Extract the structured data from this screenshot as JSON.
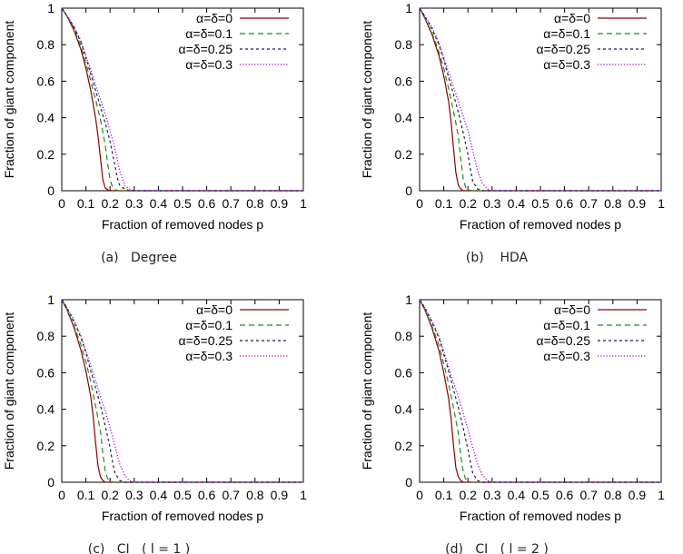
{
  "chart_data": [
    {
      "type": "line",
      "caption": "(a)   Degree",
      "xlabel": "Fraction of removed nodes p",
      "ylabel": "Fraction of giant component",
      "xlim": [
        0,
        1
      ],
      "ylim": [
        0,
        1
      ],
      "xticks": [
        "0",
        "0.1",
        "0.2",
        "0.3",
        "0.4",
        "0.5",
        "0.6",
        "0.7",
        "0.8",
        "0.9",
        "1"
      ],
      "yticks": [
        "0",
        "0.2",
        "0.4",
        "0.6",
        "0.8",
        "1"
      ],
      "legend_position": "top-right",
      "series": [
        {
          "name": "α=δ=0",
          "color": "#8b0000",
          "style": "solid",
          "x": [
            0,
            0.02,
            0.05,
            0.08,
            0.1,
            0.12,
            0.14,
            0.15,
            0.16,
            0.17,
            0.18,
            0.19,
            0.2,
            0.22,
            1
          ],
          "y": [
            1,
            0.96,
            0.88,
            0.77,
            0.67,
            0.55,
            0.4,
            0.3,
            0.18,
            0.06,
            0.015,
            0.005,
            0,
            0,
            0
          ]
        },
        {
          "name": "α=δ=0.1",
          "color": "#228b22",
          "style": "dashed",
          "x": [
            0,
            0.02,
            0.05,
            0.08,
            0.1,
            0.12,
            0.14,
            0.16,
            0.18,
            0.19,
            0.2,
            0.21,
            0.22,
            0.24,
            1
          ],
          "y": [
            1,
            0.96,
            0.89,
            0.79,
            0.7,
            0.6,
            0.5,
            0.39,
            0.25,
            0.15,
            0.06,
            0.02,
            0.005,
            0,
            0
          ]
        },
        {
          "name": "α=δ=0.25",
          "color": "#1a1a5e",
          "style": "short-dashed",
          "x": [
            0,
            0.02,
            0.05,
            0.08,
            0.1,
            0.12,
            0.14,
            0.16,
            0.18,
            0.2,
            0.22,
            0.23,
            0.24,
            0.26,
            0.28,
            1
          ],
          "y": [
            1,
            0.96,
            0.9,
            0.81,
            0.73,
            0.64,
            0.55,
            0.46,
            0.37,
            0.27,
            0.14,
            0.07,
            0.03,
            0.01,
            0,
            0
          ]
        },
        {
          "name": "α=δ=0.3",
          "color": "#9400d3",
          "style": "dotted",
          "x": [
            0,
            0.02,
            0.05,
            0.08,
            0.1,
            0.12,
            0.14,
            0.16,
            0.18,
            0.2,
            0.22,
            0.24,
            0.26,
            0.28,
            0.3,
            1
          ],
          "y": [
            1,
            0.96,
            0.9,
            0.82,
            0.74,
            0.66,
            0.58,
            0.5,
            0.42,
            0.33,
            0.23,
            0.11,
            0.03,
            0.01,
            0,
            0
          ]
        }
      ]
    },
    {
      "type": "line",
      "caption": "(b)    HDA",
      "xlabel": "Fraction of removed nodes p",
      "ylabel": "Fraction of giant component",
      "xlim": [
        0,
        1
      ],
      "ylim": [
        0,
        1
      ],
      "xticks": [
        "0",
        "0.1",
        "0.2",
        "0.3",
        "0.4",
        "0.5",
        "0.6",
        "0.7",
        "0.8",
        "0.9",
        "1"
      ],
      "yticks": [
        "0",
        "0.2",
        "0.4",
        "0.6",
        "0.8",
        "1"
      ],
      "legend_position": "top-right",
      "series": [
        {
          "name": "α=δ=0",
          "color": "#8b0000",
          "style": "solid",
          "x": [
            0,
            0.02,
            0.05,
            0.08,
            0.1,
            0.12,
            0.13,
            0.14,
            0.15,
            0.16,
            0.17,
            0.18,
            0.2,
            1
          ],
          "y": [
            1,
            0.95,
            0.86,
            0.74,
            0.63,
            0.49,
            0.38,
            0.24,
            0.1,
            0.03,
            0.01,
            0,
            0,
            0
          ]
        },
        {
          "name": "α=δ=0.1",
          "color": "#228b22",
          "style": "dashed",
          "x": [
            0,
            0.02,
            0.05,
            0.08,
            0.1,
            0.12,
            0.14,
            0.16,
            0.17,
            0.18,
            0.19,
            0.2,
            0.22,
            1
          ],
          "y": [
            1,
            0.95,
            0.87,
            0.76,
            0.67,
            0.56,
            0.44,
            0.3,
            0.18,
            0.07,
            0.02,
            0.005,
            0,
            0
          ]
        },
        {
          "name": "α=δ=0.25",
          "color": "#1a1a5e",
          "style": "short-dashed",
          "x": [
            0,
            0.02,
            0.05,
            0.08,
            0.1,
            0.12,
            0.14,
            0.16,
            0.18,
            0.2,
            0.21,
            0.22,
            0.24,
            0.26,
            1
          ],
          "y": [
            1,
            0.96,
            0.89,
            0.8,
            0.72,
            0.62,
            0.53,
            0.43,
            0.32,
            0.2,
            0.12,
            0.05,
            0.01,
            0,
            0
          ]
        },
        {
          "name": "α=δ=0.3",
          "color": "#9400d3",
          "style": "dotted",
          "x": [
            0,
            0.02,
            0.05,
            0.08,
            0.1,
            0.12,
            0.14,
            0.16,
            0.18,
            0.2,
            0.22,
            0.24,
            0.26,
            0.28,
            0.3,
            1
          ],
          "y": [
            1,
            0.96,
            0.9,
            0.81,
            0.73,
            0.65,
            0.57,
            0.49,
            0.41,
            0.33,
            0.22,
            0.11,
            0.04,
            0.01,
            0,
            0
          ]
        }
      ]
    },
    {
      "type": "line",
      "caption": "(c)   CI   ( l = 1 )",
      "xlabel": "Fraction of removed nodes p",
      "ylabel": "Fraction of giant component",
      "xlim": [
        0,
        1
      ],
      "ylim": [
        0,
        1
      ],
      "xticks": [
        "0",
        "0.1",
        "0.2",
        "0.3",
        "0.4",
        "0.5",
        "0.6",
        "0.7",
        "0.8",
        "0.9",
        "1"
      ],
      "yticks": [
        "0",
        "0.2",
        "0.4",
        "0.6",
        "0.8",
        "1"
      ],
      "legend_position": "top-right",
      "series": [
        {
          "name": "α=δ=0",
          "color": "#8b0000",
          "style": "solid",
          "x": [
            0,
            0.02,
            0.05,
            0.08,
            0.1,
            0.12,
            0.13,
            0.14,
            0.15,
            0.16,
            0.17,
            0.18,
            0.2,
            1
          ],
          "y": [
            1,
            0.95,
            0.85,
            0.72,
            0.61,
            0.47,
            0.36,
            0.22,
            0.09,
            0.03,
            0.01,
            0,
            0,
            0
          ]
        },
        {
          "name": "α=δ=0.1",
          "color": "#228b22",
          "style": "dashed",
          "x": [
            0,
            0.02,
            0.05,
            0.08,
            0.1,
            0.12,
            0.14,
            0.16,
            0.17,
            0.18,
            0.19,
            0.2,
            0.22,
            1
          ],
          "y": [
            1,
            0.95,
            0.86,
            0.75,
            0.66,
            0.55,
            0.42,
            0.28,
            0.16,
            0.06,
            0.02,
            0.005,
            0,
            0
          ]
        },
        {
          "name": "α=δ=0.25",
          "color": "#1a1a5e",
          "style": "short-dashed",
          "x": [
            0,
            0.02,
            0.05,
            0.08,
            0.1,
            0.12,
            0.14,
            0.16,
            0.18,
            0.2,
            0.21,
            0.22,
            0.24,
            0.26,
            1
          ],
          "y": [
            1,
            0.96,
            0.88,
            0.79,
            0.71,
            0.61,
            0.52,
            0.42,
            0.31,
            0.19,
            0.11,
            0.05,
            0.01,
            0,
            0
          ]
        },
        {
          "name": "α=δ=0.3",
          "color": "#9400d3",
          "style": "dotted",
          "x": [
            0,
            0.02,
            0.05,
            0.08,
            0.1,
            0.12,
            0.14,
            0.16,
            0.18,
            0.2,
            0.22,
            0.24,
            0.26,
            0.28,
            0.3,
            1
          ],
          "y": [
            1,
            0.96,
            0.89,
            0.8,
            0.72,
            0.64,
            0.56,
            0.47,
            0.39,
            0.3,
            0.2,
            0.1,
            0.04,
            0.01,
            0,
            0
          ]
        }
      ]
    },
    {
      "type": "line",
      "caption": "(d)   CI   ( l = 2 )",
      "xlabel": "Fraction of removed nodes p",
      "ylabel": "Fraction of giant component",
      "xlim": [
        0,
        1
      ],
      "ylim": [
        0,
        1
      ],
      "xticks": [
        "0",
        "0.1",
        "0.2",
        "0.3",
        "0.4",
        "0.5",
        "0.6",
        "0.7",
        "0.8",
        "0.9",
        "1"
      ],
      "yticks": [
        "0",
        "0.2",
        "0.4",
        "0.6",
        "0.8",
        "1"
      ],
      "legend_position": "top-right",
      "series": [
        {
          "name": "α=δ=0",
          "color": "#8b0000",
          "style": "solid",
          "x": [
            0,
            0.02,
            0.05,
            0.08,
            0.1,
            0.12,
            0.13,
            0.14,
            0.15,
            0.16,
            0.17,
            0.18,
            0.2,
            1
          ],
          "y": [
            1,
            0.95,
            0.85,
            0.72,
            0.6,
            0.46,
            0.35,
            0.21,
            0.08,
            0.03,
            0.01,
            0,
            0,
            0
          ]
        },
        {
          "name": "α=δ=0.1",
          "color": "#228b22",
          "style": "dashed",
          "x": [
            0,
            0.02,
            0.05,
            0.08,
            0.1,
            0.12,
            0.14,
            0.16,
            0.17,
            0.18,
            0.19,
            0.2,
            0.22,
            1
          ],
          "y": [
            1,
            0.95,
            0.86,
            0.75,
            0.65,
            0.54,
            0.41,
            0.27,
            0.15,
            0.06,
            0.02,
            0.005,
            0,
            0
          ]
        },
        {
          "name": "α=δ=0.25",
          "color": "#1a1a5e",
          "style": "short-dashed",
          "x": [
            0,
            0.02,
            0.05,
            0.08,
            0.1,
            0.12,
            0.14,
            0.16,
            0.18,
            0.2,
            0.21,
            0.22,
            0.24,
            0.26,
            1
          ],
          "y": [
            1,
            0.96,
            0.88,
            0.79,
            0.7,
            0.61,
            0.51,
            0.41,
            0.3,
            0.18,
            0.11,
            0.05,
            0.01,
            0,
            0
          ]
        },
        {
          "name": "α=δ=0.3",
          "color": "#9400d3",
          "style": "dotted",
          "x": [
            0,
            0.02,
            0.05,
            0.08,
            0.1,
            0.12,
            0.14,
            0.16,
            0.18,
            0.2,
            0.22,
            0.24,
            0.26,
            0.28,
            0.3,
            1
          ],
          "y": [
            1,
            0.96,
            0.89,
            0.8,
            0.72,
            0.63,
            0.55,
            0.47,
            0.38,
            0.29,
            0.19,
            0.1,
            0.04,
            0.01,
            0,
            0
          ]
        }
      ]
    }
  ]
}
